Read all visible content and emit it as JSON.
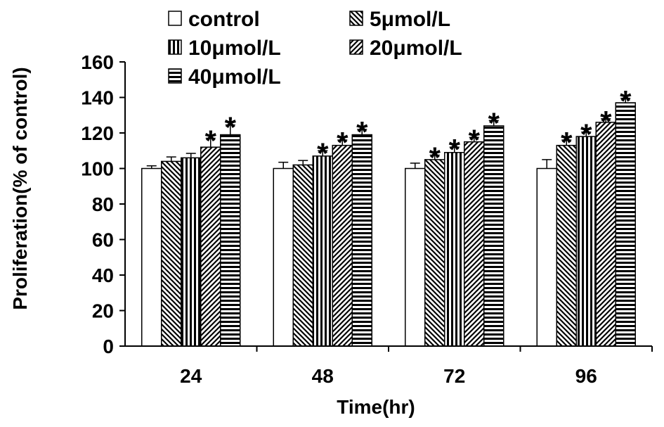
{
  "chart_data": {
    "type": "bar",
    "xlabel": "Time(hr)",
    "ylabel": "Proliferation(% of control)",
    "ylim": [
      0,
      160
    ],
    "yticks": [
      0,
      20,
      40,
      60,
      80,
      100,
      120,
      140,
      160
    ],
    "grid": false,
    "legend_position": "top",
    "categories": [
      "24",
      "48",
      "72",
      "96"
    ],
    "series": [
      {
        "name": "control",
        "pattern": "empty",
        "values": [
          100,
          100,
          100,
          100
        ],
        "errors": [
          1.5,
          3.5,
          3,
          5
        ],
        "significant": [
          false,
          false,
          false,
          false
        ]
      },
      {
        "name": "5μmol/L",
        "pattern": "back-diag",
        "values": [
          104,
          102,
          105,
          113
        ],
        "errors": [
          2.5,
          2.5,
          2.5,
          3
        ],
        "significant": [
          false,
          false,
          true,
          true
        ]
      },
      {
        "name": "10μmol/L",
        "pattern": "vertical",
        "values": [
          106,
          107,
          109,
          118
        ],
        "errors": [
          2.5,
          3,
          3,
          2.5
        ],
        "significant": [
          false,
          true,
          true,
          true
        ]
      },
      {
        "name": "20μmol/L",
        "pattern": "fwd-diag",
        "values": [
          112,
          113,
          115,
          126
        ],
        "errors": [
          5,
          3,
          2.5,
          2
        ],
        "significant": [
          true,
          true,
          true,
          true
        ]
      },
      {
        "name": "40μmol/L",
        "pattern": "horizontal",
        "values": [
          119,
          119,
          124,
          137
        ],
        "errors": [
          5.5,
          3,
          3,
          2.5
        ],
        "significant": [
          true,
          true,
          true,
          true
        ]
      }
    ],
    "significance_marker": "*"
  }
}
